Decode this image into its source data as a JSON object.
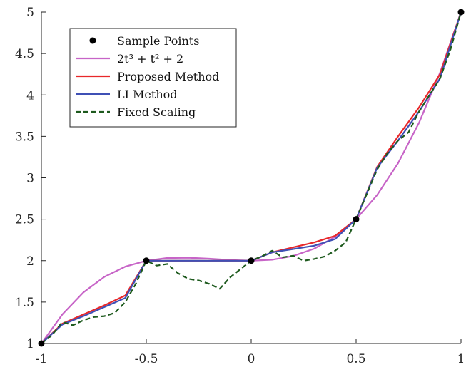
{
  "chart_data": {
    "type": "line",
    "xlim": [
      -1,
      1
    ],
    "ylim": [
      1,
      5
    ],
    "xticks": [
      -1,
      -0.5,
      0,
      0.5,
      1
    ],
    "xtick_labels": [
      "-1",
      "-0.5",
      "0",
      "0.5",
      "1"
    ],
    "yticks": [
      1,
      1.5,
      2,
      2.5,
      3,
      3.5,
      4,
      4.5,
      5
    ],
    "ytick_labels": [
      "1",
      "1.5",
      "2",
      "2.5",
      "3",
      "3.5",
      "4",
      "4.5",
      "5"
    ],
    "grid": false,
    "legend_position": "top-left",
    "series": [
      {
        "name": "Sample Points",
        "kind": "markers",
        "color": "#000000",
        "x": [
          -1,
          -0.5,
          0,
          0.5,
          1
        ],
        "y": [
          1,
          2,
          2,
          2.5,
          5
        ]
      },
      {
        "name": "2t³ + t² + 2",
        "kind": "line",
        "dash": "solid",
        "color": "#c764c7",
        "x": [
          -1,
          -0.9,
          -0.8,
          -0.7,
          -0.6,
          -0.5,
          -0.4,
          -0.3,
          -0.2,
          -0.1,
          0,
          0.1,
          0.2,
          0.3,
          0.4,
          0.5,
          0.6,
          0.7,
          0.8,
          0.9,
          1
        ],
        "y": [
          1.0,
          1.352,
          1.616,
          1.804,
          1.928,
          2.0,
          2.032,
          2.036,
          2.024,
          2.008,
          2.0,
          2.012,
          2.056,
          2.144,
          2.288,
          2.5,
          2.792,
          3.176,
          3.664,
          4.268,
          5.0
        ]
      },
      {
        "name": "Proposed Method",
        "kind": "line",
        "dash": "solid",
        "color": "#e8282a",
        "x": [
          -1,
          -0.9,
          -0.8,
          -0.7,
          -0.6,
          -0.5,
          -0.4,
          -0.3,
          -0.2,
          -0.1,
          0,
          0.1,
          0.2,
          0.3,
          0.4,
          0.5,
          0.6,
          0.7,
          0.8,
          0.9,
          1
        ],
        "y": [
          1.0,
          1.24,
          1.35,
          1.46,
          1.58,
          2.0,
          2.0,
          2.0,
          2.0,
          2.0,
          2.0,
          2.1,
          2.16,
          2.22,
          2.3,
          2.5,
          3.13,
          3.5,
          3.85,
          4.25,
          5.0
        ]
      },
      {
        "name": "LI Method",
        "kind": "line",
        "dash": "solid",
        "color": "#3f50b5",
        "x": [
          -1,
          -0.9,
          -0.8,
          -0.7,
          -0.6,
          -0.5,
          -0.4,
          -0.3,
          -0.2,
          -0.1,
          0,
          0.1,
          0.2,
          0.3,
          0.4,
          0.5,
          0.6,
          0.7,
          0.8,
          0.9,
          1
        ],
        "y": [
          1.0,
          1.23,
          1.33,
          1.44,
          1.55,
          2.0,
          2.0,
          2.0,
          2.0,
          2.0,
          2.0,
          2.1,
          2.14,
          2.18,
          2.26,
          2.5,
          3.12,
          3.45,
          3.8,
          4.2,
          5.0
        ]
      },
      {
        "name": "Fixed Scaling",
        "kind": "line",
        "dash": "dashed",
        "color": "#1e5a1e",
        "x": [
          -1,
          -0.95,
          -0.9,
          -0.85,
          -0.8,
          -0.75,
          -0.7,
          -0.65,
          -0.6,
          -0.55,
          -0.5,
          -0.45,
          -0.4,
          -0.35,
          -0.3,
          -0.25,
          -0.2,
          -0.15,
          -0.1,
          -0.05,
          0,
          0.05,
          0.1,
          0.15,
          0.2,
          0.25,
          0.3,
          0.35,
          0.4,
          0.45,
          0.5,
          0.55,
          0.6,
          0.65,
          0.7,
          0.75,
          0.8,
          0.85,
          0.9,
          0.95,
          1
        ],
        "y": [
          1.0,
          1.1,
          1.26,
          1.22,
          1.28,
          1.32,
          1.33,
          1.37,
          1.5,
          1.72,
          2.0,
          1.94,
          1.96,
          1.85,
          1.78,
          1.76,
          1.72,
          1.66,
          1.8,
          1.9,
          2.0,
          2.05,
          2.12,
          2.04,
          2.06,
          2.0,
          2.02,
          2.05,
          2.12,
          2.22,
          2.5,
          2.8,
          3.1,
          3.3,
          3.45,
          3.55,
          3.8,
          4.0,
          4.2,
          4.55,
          5.0
        ]
      }
    ]
  }
}
